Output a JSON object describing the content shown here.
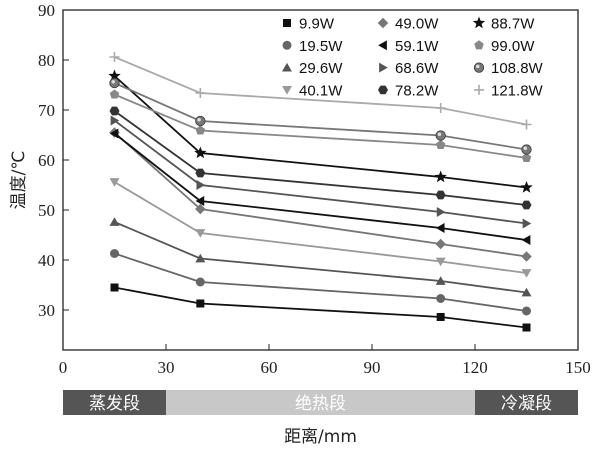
{
  "chart_data": {
    "type": "line",
    "xlabel": "距离/mm",
    "ylabel": "温度/℃",
    "xlim": [
      0,
      150
    ],
    "ylim": [
      22,
      90
    ],
    "xticks": [
      0,
      30,
      60,
      90,
      120,
      150
    ],
    "yticks": [
      30,
      40,
      50,
      60,
      70,
      80,
      90
    ],
    "x": [
      15,
      40,
      110,
      135
    ],
    "series": [
      {
        "name": "9.9W",
        "marker": "square",
        "color": "#111111",
        "values": [
          34.5,
          31.3,
          28.6,
          26.5
        ]
      },
      {
        "name": "19.5W",
        "marker": "circle",
        "color": "#666666",
        "values": [
          41.3,
          35.6,
          32.3,
          29.8
        ]
      },
      {
        "name": "29.6W",
        "marker": "triangle-up",
        "color": "#555555",
        "values": [
          47.6,
          40.3,
          35.8,
          33.5
        ]
      },
      {
        "name": "40.1W",
        "marker": "triangle-down",
        "color": "#999999",
        "values": [
          55.6,
          45.4,
          39.7,
          37.4
        ]
      },
      {
        "name": "49.0W",
        "marker": "diamond",
        "color": "#777777",
        "values": [
          65.5,
          50.2,
          43.2,
          40.7
        ]
      },
      {
        "name": "59.1W",
        "marker": "triangle-left",
        "color": "#111111",
        "values": [
          65.3,
          51.8,
          46.4,
          44.0
        ]
      },
      {
        "name": "68.6W",
        "marker": "triangle-right",
        "color": "#555555",
        "values": [
          67.9,
          55.0,
          49.6,
          47.3
        ]
      },
      {
        "name": "78.2W",
        "marker": "hexagon",
        "color": "#333333",
        "values": [
          69.8,
          57.4,
          53.0,
          51.0
        ]
      },
      {
        "name": "88.7W",
        "marker": "star",
        "color": "#111111",
        "values": [
          76.8,
          61.4,
          56.6,
          54.5
        ]
      },
      {
        "name": "99.0W",
        "marker": "pentagon",
        "color": "#888888",
        "values": [
          73.1,
          65.9,
          63.0,
          60.4
        ]
      },
      {
        "name": "108.8W",
        "marker": "ring-circle",
        "color": "#777777",
        "values": [
          75.4,
          67.8,
          64.9,
          62.1
        ]
      },
      {
        "name": "121.8W",
        "marker": "plus",
        "color": "#aaaaaa",
        "values": [
          80.6,
          73.4,
          70.4,
          67.1
        ]
      }
    ],
    "bands": [
      {
        "label": "蒸发段",
        "from": 0,
        "to": 30,
        "fill": "#555555",
        "text_color": "#ffffff"
      },
      {
        "label": "绝热段",
        "from": 30,
        "to": 120,
        "fill": "#c8c8c8",
        "text_color": "#ffffff"
      },
      {
        "label": "冷凝段",
        "from": 120,
        "to": 150,
        "fill": "#555555",
        "text_color": "#ffffff"
      }
    ],
    "legend": {
      "placement": "top-right",
      "columns": 3
    }
  }
}
